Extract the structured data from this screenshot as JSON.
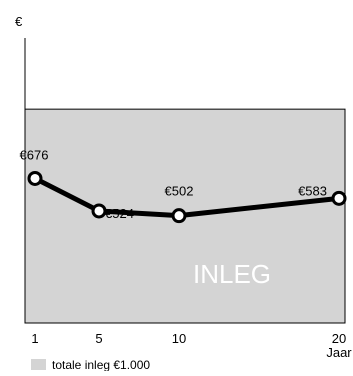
{
  "chart_data": {
    "type": "line",
    "ylabel": "€",
    "xlabel": "Jaar",
    "x": [
      1,
      5,
      10,
      20
    ],
    "x_ticks": [
      "1",
      "5",
      "10",
      "20"
    ],
    "xlim": [
      0,
      20
    ],
    "ylim": [
      0,
      1300
    ],
    "band": {
      "label": "INLEG",
      "value": 1000,
      "legend_label": "totale inleg €1.000",
      "color": "#d4d4d4"
    },
    "series": [
      {
        "values": [
          676,
          524,
          502,
          583
        ],
        "data_labels": [
          "€676",
          "€524",
          "€502",
          "€583"
        ],
        "color": "#000000"
      }
    ]
  }
}
